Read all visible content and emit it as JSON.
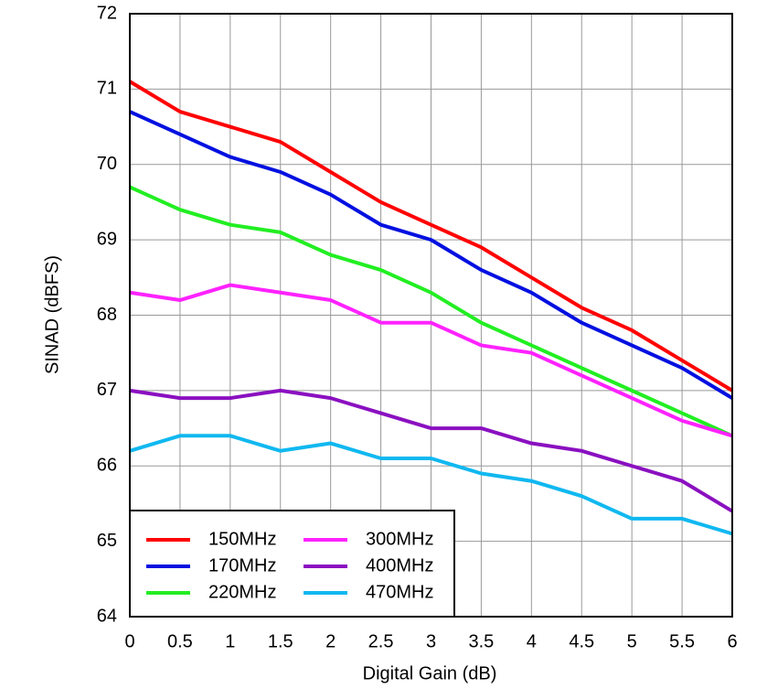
{
  "chart_data": {
    "type": "line",
    "xlabel": "Digital Gain (dB)",
    "ylabel": "SINAD (dBFS)",
    "x": [
      0,
      0.5,
      1,
      1.5,
      2,
      2.5,
      3,
      3.5,
      4,
      4.5,
      5,
      5.5,
      6
    ],
    "series": [
      {
        "name": "150MHz",
        "color": "#ff0000",
        "values": [
          71.1,
          70.7,
          70.5,
          70.3,
          69.9,
          69.5,
          69.2,
          68.9,
          68.5,
          68.1,
          67.8,
          67.4,
          67.0
        ]
      },
      {
        "name": "170MHz",
        "color": "#0010e0",
        "values": [
          70.7,
          70.4,
          70.1,
          69.9,
          69.6,
          69.2,
          69.0,
          68.6,
          68.3,
          67.9,
          67.6,
          67.3,
          66.9
        ]
      },
      {
        "name": "220MHz",
        "color": "#22ee22",
        "values": [
          69.7,
          69.4,
          69.2,
          69.1,
          68.8,
          68.6,
          68.3,
          67.9,
          67.6,
          67.3,
          67.0,
          66.7,
          66.4
        ]
      },
      {
        "name": "300MHz",
        "color": "#ff22ff",
        "values": [
          68.3,
          68.2,
          68.4,
          68.3,
          68.2,
          67.9,
          67.9,
          67.6,
          67.5,
          67.2,
          66.9,
          66.6,
          66.4
        ]
      },
      {
        "name": "400MHz",
        "color": "#8a10c0",
        "values": [
          67.0,
          66.9,
          66.9,
          67.0,
          66.9,
          66.7,
          66.5,
          66.5,
          66.3,
          66.2,
          66.0,
          65.8,
          65.4
        ]
      },
      {
        "name": "470MHz",
        "color": "#10b8f0",
        "values": [
          66.2,
          66.4,
          66.4,
          66.2,
          66.3,
          66.1,
          66.1,
          65.9,
          65.8,
          65.6,
          65.3,
          65.3,
          65.1
        ]
      }
    ],
    "xlim": [
      0,
      6
    ],
    "xticks": [
      0,
      0.5,
      1,
      1.5,
      2,
      2.5,
      3,
      3.5,
      4,
      4.5,
      5,
      5.5,
      6
    ],
    "ylim": [
      64,
      72
    ],
    "yticks": [
      64,
      65,
      66,
      67,
      68,
      69,
      70,
      71,
      72
    ],
    "grid": true,
    "legend": "lower left"
  }
}
